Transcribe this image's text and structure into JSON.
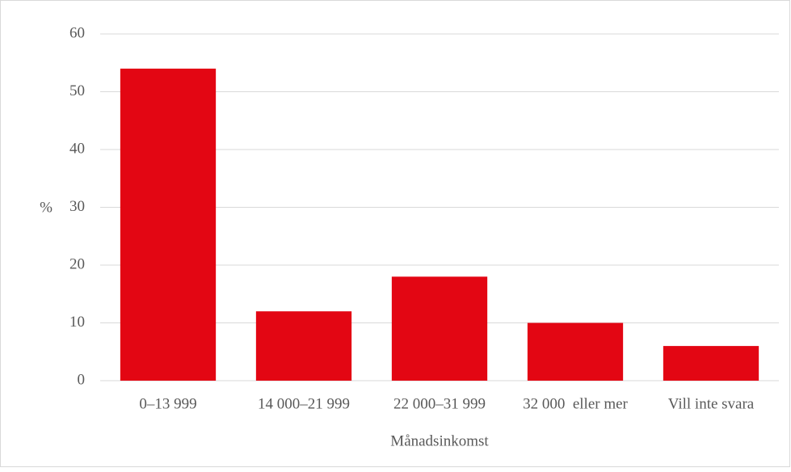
{
  "chart_data": {
    "type": "bar",
    "x_label": "Månadsinkomst",
    "y_label": "%",
    "categories": [
      "0–13 999",
      "14 000–21 999",
      "22 000–31 999",
      "32 000  eller mer",
      "Vill inte svara"
    ],
    "values": [
      54,
      12,
      18,
      10,
      6
    ],
    "color": "#e30613",
    "ylim": [
      0,
      60
    ],
    "yticks": [
      0,
      10,
      20,
      30,
      40,
      50,
      60
    ],
    "grid": true
  }
}
